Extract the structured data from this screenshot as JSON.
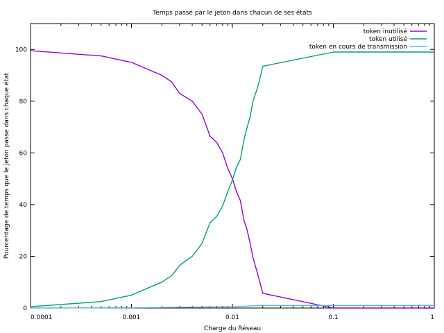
{
  "chart_data": {
    "type": "line",
    "title": "Temps passé par le jeton dans chacun de ses états",
    "xlabel": "Charge du Réseau",
    "ylabel": "Pourcentage de temps que le jeton passe dans chaque état",
    "xscale": "log",
    "xlim": [
      0.0001,
      1
    ],
    "ylim": [
      0,
      110
    ],
    "xticks": [
      0.0001,
      0.001,
      0.01,
      0.1,
      1
    ],
    "xtick_labels": [
      "0.0001",
      "0.001",
      "0.01",
      "0.1",
      "1"
    ],
    "yticks": [
      0,
      20,
      40,
      60,
      80,
      100
    ],
    "ytick_labels": [
      "0",
      "20",
      "40",
      "60",
      "80",
      "100"
    ],
    "grid": false,
    "legend_position": "top-right",
    "series": [
      {
        "name": "token inutilisé",
        "color": "#9400d3",
        "x": [
          0.0001,
          0.0005,
          0.001,
          0.002,
          0.0025,
          0.003,
          0.004,
          0.005,
          0.006,
          0.007,
          0.008,
          0.009,
          0.01,
          0.011,
          0.012,
          0.013,
          0.014,
          0.015,
          0.016,
          0.018,
          0.02,
          0.1,
          1
        ],
        "y": [
          99.5,
          97.5,
          95,
          90,
          87.5,
          83,
          80,
          75,
          66.5,
          64,
          60,
          54,
          50,
          45,
          41.5,
          34,
          30,
          25,
          19.5,
          12.5,
          5.7,
          0,
          0
        ]
      },
      {
        "name": "token utilisé",
        "color": "#009e73",
        "x": [
          0.0001,
          0.0005,
          0.001,
          0.002,
          0.0025,
          0.003,
          0.004,
          0.005,
          0.006,
          0.007,
          0.008,
          0.009,
          0.01,
          0.011,
          0.012,
          0.013,
          0.014,
          0.015,
          0.016,
          0.018,
          0.02,
          0.1,
          1
        ],
        "y": [
          0.5,
          2.5,
          5,
          10,
          12.5,
          16.5,
          20,
          25,
          33,
          35.5,
          39.5,
          45,
          49.5,
          54.5,
          57.5,
          65,
          70,
          74,
          80,
          86,
          93.5,
          99,
          99
        ]
      },
      {
        "name": "token en cours de transmission",
        "color": "#56b4e9",
        "x": [
          0.0001,
          0.001,
          0.01,
          0.02,
          0.1,
          1
        ],
        "y": [
          0,
          0.1,
          0.5,
          1,
          1,
          1
        ]
      }
    ]
  }
}
